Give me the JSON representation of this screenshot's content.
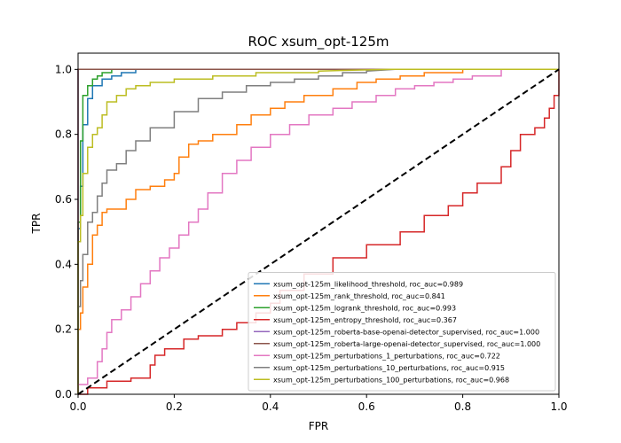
{
  "chart_data": {
    "type": "line",
    "title": "ROC xsum_opt-125m",
    "xlabel": "FPR",
    "ylabel": "TPR",
    "xlim": [
      0.0,
      1.0
    ],
    "ylim": [
      0.0,
      1.05
    ],
    "xticks": [
      "0.0",
      "0.2",
      "0.4",
      "0.6",
      "0.8",
      "1.0"
    ],
    "yticks": [
      "0.0",
      "0.2",
      "0.4",
      "0.6",
      "0.8",
      "1.0"
    ],
    "grid": false,
    "legend_position": "lower right",
    "diagonal": {
      "style": "dashed",
      "color": "#000000",
      "x": [
        0,
        1
      ],
      "y": [
        0,
        1
      ]
    },
    "series": [
      {
        "name": "xsum_opt-125m_likelihood_threshold, roc_auc=0.989",
        "color": "#1f77b4",
        "x": [
          0,
          0,
          0.005,
          0.005,
          0.01,
          0.01,
          0.02,
          0.02,
          0.03,
          0.03,
          0.05,
          0.05,
          0.07,
          0.07,
          0.09,
          0.09,
          0.12,
          0.12,
          0.2,
          0.27
        ],
        "y": [
          0,
          0.51,
          0.51,
          0.64,
          0.64,
          0.83,
          0.83,
          0.91,
          0.91,
          0.95,
          0.95,
          0.97,
          0.97,
          0.98,
          0.98,
          0.99,
          0.99,
          1.0,
          1.0,
          1.0
        ]
      },
      {
        "name": "xsum_opt-125m_rank_threshold, roc_auc=0.841",
        "color": "#ff7f0e",
        "x": [
          0,
          0,
          0.005,
          0.005,
          0.01,
          0.01,
          0.02,
          0.02,
          0.03,
          0.03,
          0.04,
          0.04,
          0.05,
          0.05,
          0.06,
          0.06,
          0.1,
          0.1,
          0.12,
          0.12,
          0.15,
          0.15,
          0.18,
          0.18,
          0.2,
          0.2,
          0.21,
          0.21,
          0.23,
          0.23,
          0.25,
          0.25,
          0.28,
          0.28,
          0.33,
          0.33,
          0.36,
          0.36,
          0.4,
          0.4,
          0.43,
          0.43,
          0.47,
          0.47,
          0.53,
          0.53,
          0.58,
          0.58,
          0.62,
          0.62,
          0.67,
          0.67,
          0.72,
          0.72,
          0.8,
          0.8,
          0.9,
          1.0
        ],
        "y": [
          0,
          0.2,
          0.2,
          0.25,
          0.25,
          0.33,
          0.33,
          0.4,
          0.4,
          0.49,
          0.49,
          0.52,
          0.52,
          0.56,
          0.56,
          0.57,
          0.57,
          0.6,
          0.6,
          0.63,
          0.63,
          0.64,
          0.64,
          0.66,
          0.66,
          0.68,
          0.68,
          0.73,
          0.73,
          0.77,
          0.77,
          0.78,
          0.78,
          0.8,
          0.8,
          0.83,
          0.83,
          0.86,
          0.86,
          0.88,
          0.88,
          0.9,
          0.9,
          0.92,
          0.92,
          0.94,
          0.94,
          0.96,
          0.96,
          0.97,
          0.97,
          0.98,
          0.98,
          0.99,
          0.99,
          1.0,
          1.0,
          1.0
        ]
      },
      {
        "name": "xsum_opt-125m_logrank_threshold, roc_auc=0.993",
        "color": "#2ca02c",
        "x": [
          0,
          0,
          0.005,
          0.005,
          0.01,
          0.01,
          0.02,
          0.02,
          0.03,
          0.03,
          0.04,
          0.04,
          0.05,
          0.05,
          0.07,
          0.07,
          0.65
        ],
        "y": [
          0,
          0.53,
          0.53,
          0.78,
          0.78,
          0.92,
          0.92,
          0.95,
          0.95,
          0.97,
          0.97,
          0.98,
          0.98,
          0.99,
          0.99,
          1.0,
          1.0
        ]
      },
      {
        "name": "xsum_opt-125m_entropy_threshold, roc_auc=0.367",
        "color": "#d62728",
        "x": [
          0,
          0.02,
          0.02,
          0.06,
          0.06,
          0.11,
          0.11,
          0.15,
          0.15,
          0.16,
          0.16,
          0.18,
          0.18,
          0.22,
          0.22,
          0.25,
          0.25,
          0.3,
          0.3,
          0.33,
          0.33,
          0.37,
          0.37,
          0.4,
          0.4,
          0.42,
          0.42,
          0.47,
          0.47,
          0.53,
          0.53,
          0.6,
          0.6,
          0.67,
          0.67,
          0.72,
          0.72,
          0.77,
          0.77,
          0.8,
          0.8,
          0.83,
          0.83,
          0.88,
          0.88,
          0.9,
          0.9,
          0.92,
          0.92,
          0.95,
          0.95,
          0.97,
          0.97,
          0.98,
          0.98,
          0.99,
          0.99,
          1.0,
          1.0
        ],
        "y": [
          0,
          0,
          0.02,
          0.02,
          0.04,
          0.04,
          0.05,
          0.05,
          0.09,
          0.09,
          0.12,
          0.12,
          0.14,
          0.14,
          0.17,
          0.17,
          0.18,
          0.18,
          0.2,
          0.2,
          0.22,
          0.22,
          0.25,
          0.25,
          0.28,
          0.28,
          0.32,
          0.32,
          0.37,
          0.37,
          0.42,
          0.42,
          0.46,
          0.46,
          0.5,
          0.5,
          0.55,
          0.55,
          0.58,
          0.58,
          0.62,
          0.62,
          0.65,
          0.65,
          0.7,
          0.7,
          0.75,
          0.75,
          0.8,
          0.8,
          0.82,
          0.82,
          0.85,
          0.85,
          0.88,
          0.88,
          0.92,
          0.92,
          1.0
        ]
      },
      {
        "name": "xsum_opt-125m_roberta-base-openai-detector_supervised, roc_auc=1.000",
        "color": "#9467bd",
        "x": [
          0,
          0,
          1.0
        ],
        "y": [
          0,
          1.0,
          1.0
        ]
      },
      {
        "name": "xsum_opt-125m_roberta-large-openai-detector_supervised, roc_auc=1.000",
        "color": "#8c564b",
        "x": [
          0,
          0,
          1.0
        ],
        "y": [
          0,
          1.0,
          1.0
        ]
      },
      {
        "name": "xsum_opt-125m_perturbations_1_perturbations, roc_auc=0.722",
        "color": "#e377c2",
        "x": [
          0,
          0,
          0.02,
          0.02,
          0.04,
          0.04,
          0.05,
          0.05,
          0.06,
          0.06,
          0.07,
          0.07,
          0.09,
          0.09,
          0.11,
          0.11,
          0.13,
          0.13,
          0.15,
          0.15,
          0.17,
          0.17,
          0.19,
          0.19,
          0.21,
          0.21,
          0.23,
          0.23,
          0.25,
          0.25,
          0.27,
          0.27,
          0.3,
          0.3,
          0.33,
          0.33,
          0.36,
          0.36,
          0.4,
          0.4,
          0.44,
          0.44,
          0.48,
          0.48,
          0.53,
          0.53,
          0.57,
          0.57,
          0.62,
          0.62,
          0.66,
          0.66,
          0.7,
          0.7,
          0.74,
          0.74,
          0.78,
          0.78,
          0.82,
          0.82,
          0.88,
          0.88,
          1.0
        ],
        "y": [
          0,
          0.03,
          0.03,
          0.05,
          0.05,
          0.1,
          0.1,
          0.14,
          0.14,
          0.19,
          0.19,
          0.23,
          0.23,
          0.26,
          0.26,
          0.3,
          0.3,
          0.34,
          0.34,
          0.38,
          0.38,
          0.42,
          0.42,
          0.45,
          0.45,
          0.49,
          0.49,
          0.53,
          0.53,
          0.57,
          0.57,
          0.62,
          0.62,
          0.68,
          0.68,
          0.72,
          0.72,
          0.76,
          0.76,
          0.8,
          0.8,
          0.83,
          0.83,
          0.86,
          0.86,
          0.88,
          0.88,
          0.9,
          0.9,
          0.92,
          0.92,
          0.94,
          0.94,
          0.95,
          0.95,
          0.96,
          0.96,
          0.97,
          0.97,
          0.98,
          0.98,
          1.0,
          1.0
        ]
      },
      {
        "name": "xsum_opt-125m_perturbations_10_perturbations, roc_auc=0.915",
        "color": "#7f7f7f",
        "x": [
          0,
          0,
          0.005,
          0.005,
          0.01,
          0.01,
          0.02,
          0.02,
          0.03,
          0.03,
          0.04,
          0.04,
          0.05,
          0.05,
          0.06,
          0.06,
          0.08,
          0.08,
          0.1,
          0.1,
          0.12,
          0.12,
          0.15,
          0.15,
          0.2,
          0.2,
          0.25,
          0.25,
          0.3,
          0.3,
          0.35,
          0.35,
          0.4,
          0.4,
          0.45,
          0.45,
          0.5,
          0.5,
          0.55,
          0.55,
          0.6,
          0.6,
          0.66,
          1.0
        ],
        "y": [
          0,
          0.27,
          0.27,
          0.35,
          0.35,
          0.43,
          0.43,
          0.53,
          0.53,
          0.56,
          0.56,
          0.61,
          0.61,
          0.65,
          0.65,
          0.69,
          0.69,
          0.71,
          0.71,
          0.75,
          0.75,
          0.78,
          0.78,
          0.82,
          0.82,
          0.87,
          0.87,
          0.91,
          0.91,
          0.93,
          0.93,
          0.95,
          0.95,
          0.96,
          0.96,
          0.97,
          0.97,
          0.98,
          0.98,
          0.99,
          0.99,
          0.995,
          1.0,
          1.0
        ]
      },
      {
        "name": "xsum_opt-125m_perturbations_100_perturbations, roc_auc=0.968",
        "color": "#bcbd22",
        "x": [
          0,
          0,
          0.005,
          0.005,
          0.01,
          0.01,
          0.02,
          0.02,
          0.03,
          0.03,
          0.04,
          0.04,
          0.05,
          0.05,
          0.06,
          0.06,
          0.08,
          0.08,
          0.1,
          0.1,
          0.12,
          0.12,
          0.15,
          0.15,
          0.2,
          0.2,
          0.28,
          0.28,
          0.37,
          0.37,
          0.5,
          0.5,
          0.65,
          1.0
        ],
        "y": [
          0,
          0.47,
          0.47,
          0.55,
          0.55,
          0.68,
          0.68,
          0.76,
          0.76,
          0.8,
          0.8,
          0.82,
          0.82,
          0.86,
          0.86,
          0.9,
          0.9,
          0.92,
          0.92,
          0.94,
          0.94,
          0.95,
          0.95,
          0.96,
          0.96,
          0.97,
          0.97,
          0.98,
          0.98,
          0.99,
          0.99,
          0.995,
          1.0,
          1.0
        ]
      }
    ]
  }
}
